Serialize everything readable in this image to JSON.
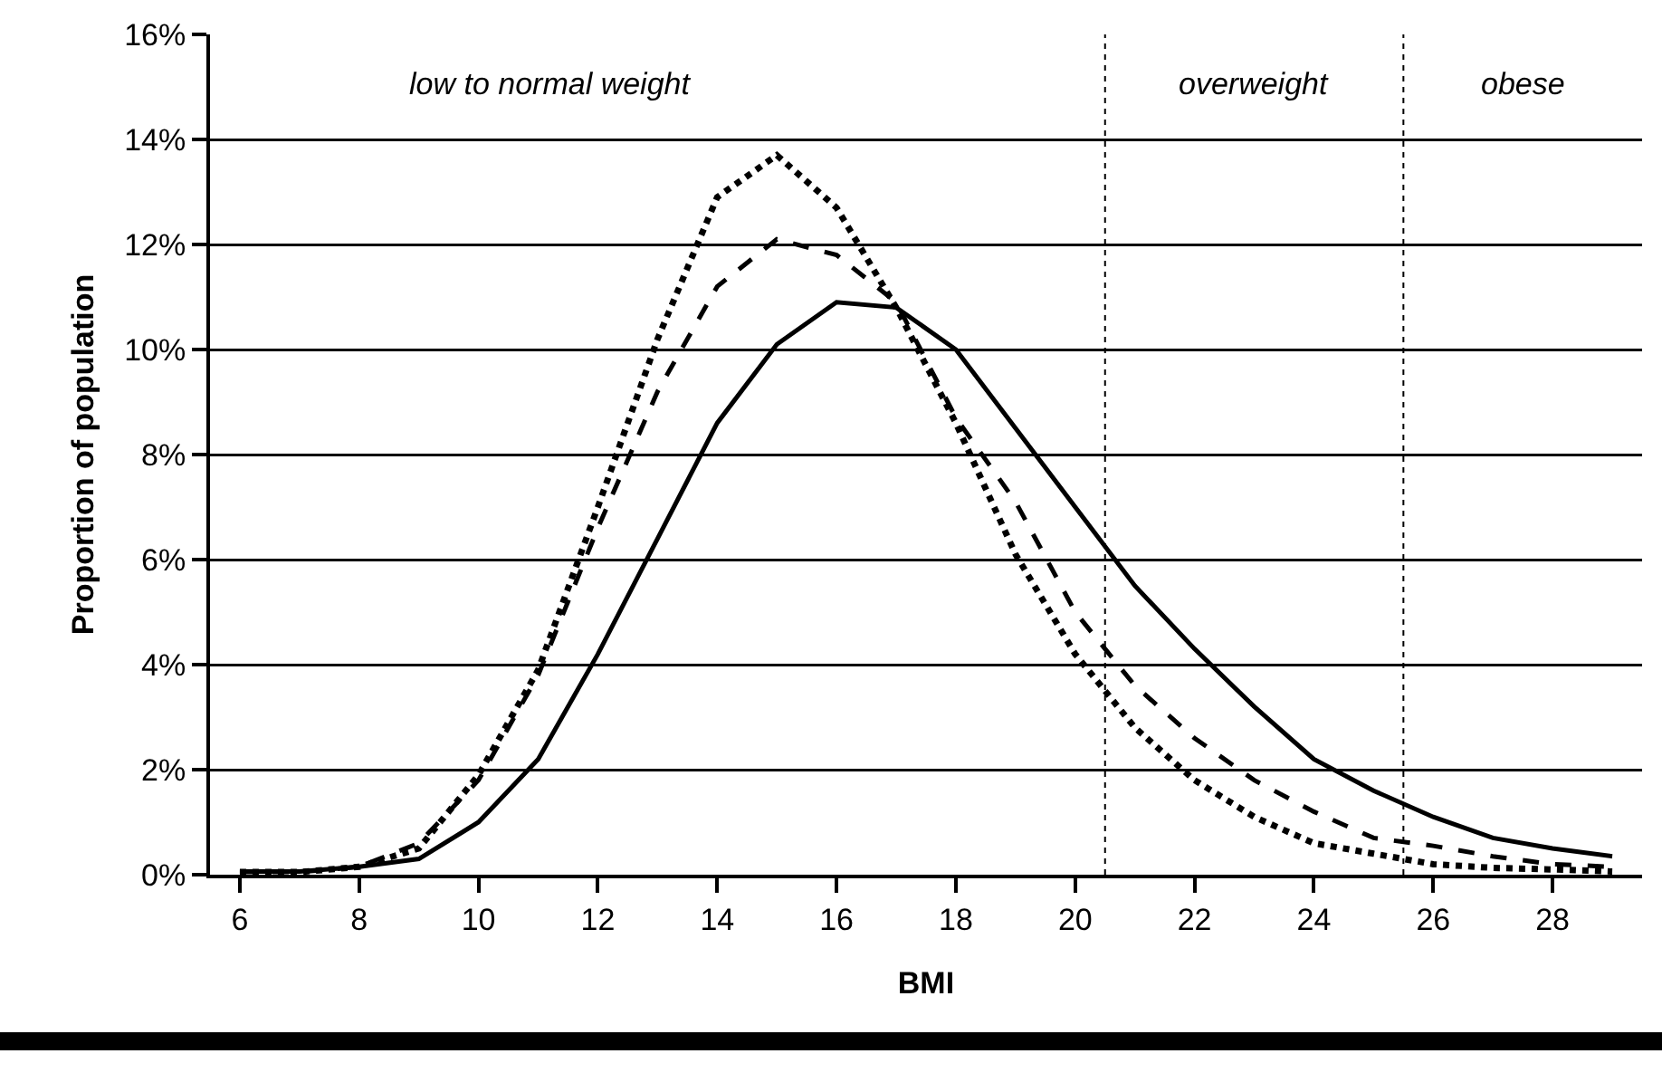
{
  "chart_data": {
    "type": "line",
    "xlabel": "BMI",
    "ylabel": "Proportion of population",
    "x": [
      6,
      7,
      8,
      9,
      10,
      11,
      12,
      13,
      14,
      15,
      16,
      17,
      18,
      19,
      20,
      21,
      22,
      23,
      24,
      25,
      26,
      27,
      28,
      29
    ],
    "series": [
      {
        "color": "#000000",
        "line_style": "solid",
        "values": [
          0.06,
          0.06,
          0.15,
          0.3,
          1.0,
          2.2,
          4.2,
          6.4,
          8.6,
          10.1,
          10.9,
          10.8,
          10.0,
          8.5,
          7.0,
          5.5,
          4.3,
          3.2,
          2.2,
          1.6,
          1.1,
          0.7,
          0.5,
          0.35
        ]
      },
      {
        "color": "#000000",
        "line_style": "dashed",
        "values": [
          0.05,
          0.05,
          0.15,
          0.6,
          1.8,
          3.8,
          6.6,
          9.2,
          11.2,
          12.1,
          11.8,
          10.9,
          8.7,
          7.1,
          5.0,
          3.6,
          2.6,
          1.8,
          1.2,
          0.7,
          0.55,
          0.35,
          0.2,
          0.15
        ]
      },
      {
        "color": "#000000",
        "line_style": "dotted",
        "values": [
          0.05,
          0.05,
          0.15,
          0.5,
          1.9,
          3.9,
          7.0,
          10.2,
          12.9,
          13.7,
          12.7,
          10.8,
          8.6,
          6.1,
          4.2,
          2.8,
          1.8,
          1.1,
          0.6,
          0.4,
          0.2,
          0.13,
          0.1,
          0.06
        ]
      }
    ],
    "xlim": [
      5.5,
      29.5
    ],
    "xticks": [
      6,
      8,
      10,
      12,
      14,
      16,
      18,
      20,
      22,
      24,
      26,
      28
    ],
    "ylim": [
      0,
      16
    ],
    "yticks": [
      {
        "value": 0,
        "label": "0%"
      },
      {
        "value": 2,
        "label": "2%"
      },
      {
        "value": 4,
        "label": "4%"
      },
      {
        "value": 6,
        "label": "6%"
      },
      {
        "value": 8,
        "label": "8%"
      },
      {
        "value": 10,
        "label": "10%"
      },
      {
        "value": 12,
        "label": "12%"
      },
      {
        "value": 14,
        "label": "14%"
      },
      {
        "value": 16,
        "label": "16%"
      }
    ],
    "grid": "y",
    "marker": "none",
    "ref_lines": [
      {
        "axis": "x",
        "value": 20.5,
        "color": "#000000",
        "line_style": "dotted"
      },
      {
        "axis": "x",
        "value": 25.5,
        "color": "#000000",
        "line_style": "dotted"
      }
    ],
    "annotations": [
      "low to normal weight",
      "overweight",
      "obese"
    ]
  }
}
